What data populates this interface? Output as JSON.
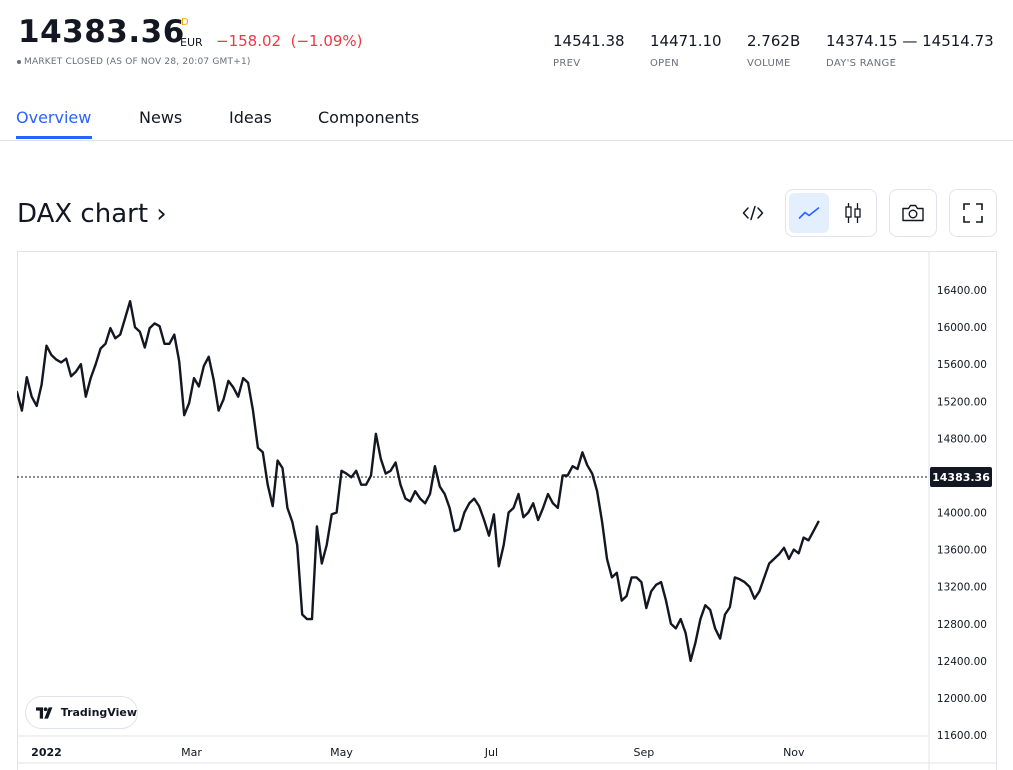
{
  "quote": {
    "price": "14383.36",
    "superscript": "D",
    "currency": "EUR",
    "change": "−158.02  (−1.09%)",
    "status": "MARKET CLOSED (AS OF NOV 28, 20:07 GMT+1)"
  },
  "stats": [
    {
      "value": "14541.38",
      "label": "PREV"
    },
    {
      "value": "14471.10",
      "label": "OPEN"
    },
    {
      "value": "2.762B",
      "label": "VOLUME"
    },
    {
      "value": "14374.15 — 14514.73",
      "label": "DAY'S RANGE"
    }
  ],
  "tabs": [
    {
      "label": "Overview",
      "active": true
    },
    {
      "label": "News",
      "active": false
    },
    {
      "label": "Ideas",
      "active": false
    },
    {
      "label": "Components",
      "active": false
    }
  ],
  "chart_header": {
    "title": "DAX chart ›"
  },
  "toolbar": {
    "embed_icon": "code-icon",
    "line_icon": "line-chart-icon",
    "candle_icon": "candlestick-icon",
    "camera_icon": "camera-icon",
    "fullscreen_icon": "fullscreen-icon"
  },
  "branding": {
    "label": "TradingView"
  },
  "colors": {
    "line": "#131722",
    "accent": "#2962ff",
    "negative": "#f23645",
    "selected_bg": "#e3effd"
  },
  "chart_data": {
    "type": "line",
    "y_ticks": [
      "16400.00",
      "16000.00",
      "15600.00",
      "15200.00",
      "14800.00",
      "14000.00",
      "13600.00",
      "13200.00",
      "12800.00",
      "12400.00",
      "12000.00",
      "11600.00"
    ],
    "ylim": [
      11600,
      16800
    ],
    "x_ticks": [
      {
        "label": "2022",
        "date": "2022-01-01"
      },
      {
        "label": "Mar",
        "date": "2022-03-01"
      },
      {
        "label": "May",
        "date": "2022-05-01"
      },
      {
        "label": "Jul",
        "date": "2022-07-01"
      },
      {
        "label": "Sep",
        "date": "2022-09-01"
      },
      {
        "label": "Nov",
        "date": "2022-11-01"
      }
    ],
    "xlim": [
      "2021-12-20",
      "2022-12-26"
    ],
    "last_value": 14383.36,
    "last_label": "14383.36",
    "grid": false,
    "series": [
      {
        "points": [
          [
            "2021-12-20",
            15300
          ],
          [
            "2021-12-22",
            15100
          ],
          [
            "2021-12-24",
            15460
          ],
          [
            "2021-12-26",
            15250
          ],
          [
            "2021-12-28",
            15150
          ],
          [
            "2021-12-30",
            15380
          ],
          [
            "2022-01-01",
            15800
          ],
          [
            "2022-01-03",
            15700
          ],
          [
            "2022-01-05",
            15650
          ],
          [
            "2022-01-07",
            15620
          ],
          [
            "2022-01-09",
            15660
          ],
          [
            "2022-01-11",
            15470
          ],
          [
            "2022-01-13",
            15520
          ],
          [
            "2022-01-15",
            15600
          ],
          [
            "2022-01-17",
            15250
          ],
          [
            "2022-01-19",
            15450
          ],
          [
            "2022-01-21",
            15600
          ],
          [
            "2022-01-23",
            15770
          ],
          [
            "2022-01-25",
            15820
          ],
          [
            "2022-01-27",
            15990
          ],
          [
            "2022-01-29",
            15880
          ],
          [
            "2022-01-31",
            15920
          ],
          [
            "2022-02-02",
            16100
          ],
          [
            "2022-02-04",
            16280
          ],
          [
            "2022-02-06",
            16000
          ],
          [
            "2022-02-08",
            15950
          ],
          [
            "2022-02-10",
            15780
          ],
          [
            "2022-02-12",
            15990
          ],
          [
            "2022-02-14",
            16040
          ],
          [
            "2022-02-16",
            16010
          ],
          [
            "2022-02-18",
            15820
          ],
          [
            "2022-02-20",
            15820
          ],
          [
            "2022-02-22",
            15920
          ],
          [
            "2022-02-24",
            15630
          ],
          [
            "2022-02-26",
            15050
          ],
          [
            "2022-02-28",
            15180
          ],
          [
            "2022-03-02",
            15450
          ],
          [
            "2022-03-04",
            15360
          ],
          [
            "2022-03-06",
            15580
          ],
          [
            "2022-03-08",
            15680
          ],
          [
            "2022-03-10",
            15430
          ],
          [
            "2022-03-12",
            15100
          ],
          [
            "2022-03-14",
            15220
          ],
          [
            "2022-03-16",
            15420
          ],
          [
            "2022-03-18",
            15350
          ],
          [
            "2022-03-20",
            15250
          ],
          [
            "2022-03-22",
            15450
          ],
          [
            "2022-03-24",
            15400
          ],
          [
            "2022-03-26",
            15100
          ],
          [
            "2022-03-28",
            14700
          ],
          [
            "2022-03-30",
            14650
          ],
          [
            "2022-04-01",
            14300
          ],
          [
            "2022-04-03",
            14070
          ],
          [
            "2022-04-05",
            14560
          ],
          [
            "2022-04-07",
            14480
          ],
          [
            "2022-04-09",
            14050
          ],
          [
            "2022-04-11",
            13900
          ],
          [
            "2022-04-13",
            13650
          ],
          [
            "2022-04-15",
            12900
          ],
          [
            "2022-04-17",
            12850
          ],
          [
            "2022-04-19",
            12850
          ],
          [
            "2022-04-21",
            13850
          ],
          [
            "2022-04-23",
            13450
          ],
          [
            "2022-04-25",
            13650
          ],
          [
            "2022-04-27",
            13980
          ],
          [
            "2022-04-29",
            14000
          ],
          [
            "2022-05-01",
            14450
          ],
          [
            "2022-05-03",
            14420
          ],
          [
            "2022-05-05",
            14380
          ],
          [
            "2022-05-07",
            14450
          ],
          [
            "2022-05-09",
            14300
          ],
          [
            "2022-05-11",
            14300
          ],
          [
            "2022-05-13",
            14400
          ],
          [
            "2022-05-15",
            14850
          ],
          [
            "2022-05-17",
            14580
          ],
          [
            "2022-05-19",
            14420
          ],
          [
            "2022-05-21",
            14450
          ],
          [
            "2022-05-23",
            14540
          ],
          [
            "2022-05-25",
            14300
          ],
          [
            "2022-05-27",
            14150
          ],
          [
            "2022-05-29",
            14120
          ],
          [
            "2022-05-31",
            14230
          ],
          [
            "2022-06-02",
            14150
          ],
          [
            "2022-06-04",
            14100
          ],
          [
            "2022-06-06",
            14200
          ],
          [
            "2022-06-08",
            14500
          ],
          [
            "2022-06-10",
            14280
          ],
          [
            "2022-06-12",
            14200
          ],
          [
            "2022-06-14",
            14050
          ],
          [
            "2022-06-16",
            13800
          ],
          [
            "2022-06-18",
            13820
          ],
          [
            "2022-06-20",
            14000
          ],
          [
            "2022-06-22",
            14100
          ],
          [
            "2022-06-24",
            14150
          ],
          [
            "2022-06-26",
            14070
          ],
          [
            "2022-06-28",
            13920
          ],
          [
            "2022-06-30",
            13750
          ],
          [
            "2022-07-02",
            13980
          ],
          [
            "2022-07-04",
            13420
          ],
          [
            "2022-07-06",
            13650
          ],
          [
            "2022-07-08",
            14000
          ],
          [
            "2022-07-10",
            14050
          ],
          [
            "2022-07-12",
            14200
          ],
          [
            "2022-07-14",
            13950
          ],
          [
            "2022-07-16",
            14000
          ],
          [
            "2022-07-18",
            14100
          ],
          [
            "2022-07-20",
            13920
          ],
          [
            "2022-07-22",
            14050
          ],
          [
            "2022-07-24",
            14200
          ],
          [
            "2022-07-26",
            14100
          ],
          [
            "2022-07-28",
            14050
          ],
          [
            "2022-07-30",
            14400
          ],
          [
            "2022-08-01",
            14400
          ],
          [
            "2022-08-03",
            14500
          ],
          [
            "2022-08-05",
            14470
          ],
          [
            "2022-08-07",
            14650
          ],
          [
            "2022-08-09",
            14510
          ],
          [
            "2022-08-11",
            14420
          ],
          [
            "2022-08-13",
            14230
          ],
          [
            "2022-08-15",
            13900
          ],
          [
            "2022-08-17",
            13500
          ],
          [
            "2022-08-19",
            13300
          ],
          [
            "2022-08-21",
            13350
          ],
          [
            "2022-08-23",
            13050
          ],
          [
            "2022-08-25",
            13100
          ],
          [
            "2022-08-27",
            13300
          ],
          [
            "2022-08-29",
            13300
          ],
          [
            "2022-08-31",
            13250
          ],
          [
            "2022-09-02",
            12970
          ],
          [
            "2022-09-04",
            13150
          ],
          [
            "2022-09-06",
            13220
          ],
          [
            "2022-09-08",
            13250
          ],
          [
            "2022-09-10",
            13050
          ],
          [
            "2022-09-12",
            12800
          ],
          [
            "2022-09-14",
            12750
          ],
          [
            "2022-09-16",
            12850
          ],
          [
            "2022-09-18",
            12700
          ],
          [
            "2022-09-20",
            12400
          ],
          [
            "2022-09-22",
            12600
          ],
          [
            "2022-09-24",
            12850
          ],
          [
            "2022-09-26",
            13000
          ],
          [
            "2022-09-28",
            12950
          ],
          [
            "2022-09-30",
            12750
          ],
          [
            "2022-10-02",
            12640
          ],
          [
            "2022-10-04",
            12900
          ],
          [
            "2022-10-06",
            12980
          ],
          [
            "2022-10-08",
            13300
          ],
          [
            "2022-10-10",
            13280
          ],
          [
            "2022-10-12",
            13250
          ],
          [
            "2022-10-14",
            13200
          ],
          [
            "2022-10-16",
            13070
          ],
          [
            "2022-10-18",
            13150
          ],
          [
            "2022-10-20",
            13300
          ],
          [
            "2022-10-22",
            13450
          ],
          [
            "2022-10-24",
            13500
          ],
          [
            "2022-10-26",
            13550
          ],
          [
            "2022-10-28",
            13620
          ],
          [
            "2022-10-30",
            13500
          ],
          [
            "2022-11-01",
            13600
          ],
          [
            "2022-11-03",
            13560
          ],
          [
            "2022-11-05",
            13730
          ],
          [
            "2022-11-07",
            13700
          ],
          [
            "2022-11-09",
            13800
          ],
          [
            "2022-11-11",
            13900
          ]
        ]
      }
    ]
  }
}
